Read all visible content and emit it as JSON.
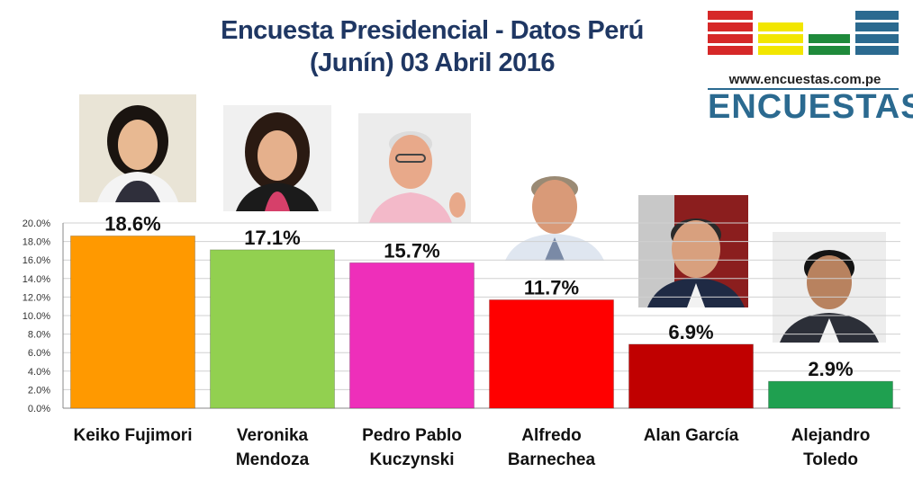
{
  "header": {
    "title_line1": "Encuesta Presidencial - Datos Perú",
    "title_line2": "(Junín) 03 Abril 2016"
  },
  "logo": {
    "url": "www.encuestas.com.pe",
    "word": "ENCUESTAS",
    "colors": [
      "#d62828",
      "#f2e600",
      "#1f8a3b",
      "#2b6a90"
    ]
  },
  "chart_data": {
    "type": "bar",
    "categories": [
      [
        "Keiko Fujimori"
      ],
      [
        "Veronika",
        "Mendoza"
      ],
      [
        "Pedro Pablo",
        "Kuczynski"
      ],
      [
        "Alfredo",
        "Barnechea"
      ],
      [
        "Alan García"
      ],
      [
        "Alejandro",
        "Toledo"
      ]
    ],
    "values": [
      18.6,
      17.1,
      15.7,
      11.7,
      6.9,
      2.9
    ],
    "data_labels": [
      "18.6%",
      "17.1%",
      "15.7%",
      "11.7%",
      "6.9%",
      "2.9%"
    ],
    "colors": [
      "#ff9900",
      "#92d050",
      "#ee2fba",
      "#ff0000",
      "#c00000",
      "#1fa050"
    ],
    "ylim": [
      0,
      20
    ],
    "yticks": [
      "0.0%",
      "2.0%",
      "4.0%",
      "6.0%",
      "8.0%",
      "10.0%",
      "12.0%",
      "14.0%",
      "16.0%",
      "18.0%",
      "20.0%"
    ],
    "grid": true
  }
}
